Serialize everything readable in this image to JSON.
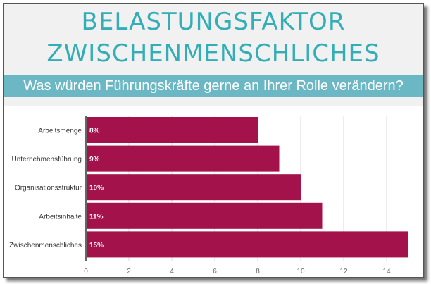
{
  "header": {
    "title_line1": "BELASTUNGSFAKTOR",
    "title_line2": "ZWISCHENMENSCHLICHES",
    "subtitle": "Was würden Führungskräfte gerne an Ihrer Rolle verändern?"
  },
  "colors": {
    "title": "#33aeb7",
    "subtitle_band": "#6bb7c4",
    "bar": "#a3124a"
  },
  "chart_data": {
    "type": "bar",
    "orientation": "horizontal",
    "title": "",
    "xlabel": "",
    "ylabel": "",
    "categories": [
      "Arbeitsmenge",
      "Unternehmensführung",
      "Organisationsstruktur",
      "Arbeitsinhalte",
      "Zwischenmenschliches"
    ],
    "values": [
      8,
      9,
      10,
      11,
      15
    ],
    "data_labels": [
      "8%",
      "9%",
      "10%",
      "11%",
      "15%"
    ],
    "xlim": [
      0,
      15
    ],
    "xticks": [
      0,
      2,
      4,
      6,
      8,
      10,
      12,
      14
    ],
    "grid": true
  }
}
